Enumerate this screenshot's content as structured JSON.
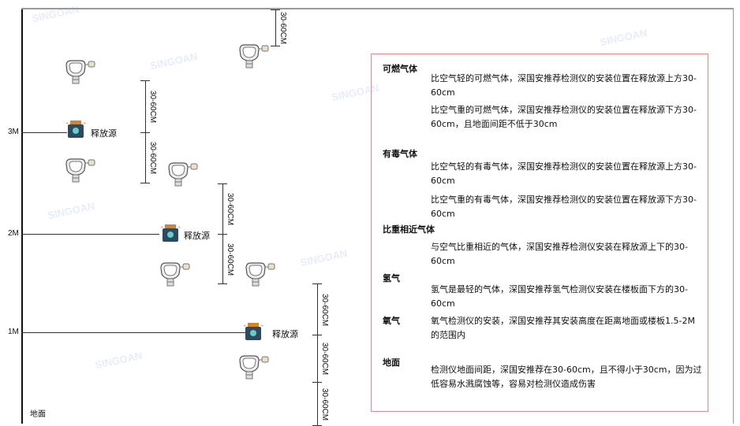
{
  "levels": [
    "3M",
    "2M",
    "1M"
  ],
  "ground_label": "地面",
  "source_label": "释放源",
  "dimension_label": "30-60CM",
  "watermark": "SINGOAN 深国安",
  "colors": {
    "panel_border": "#e88888",
    "source_body": "#2d4b5e",
    "source_cap": "#d9822b"
  },
  "panel": {
    "sections": [
      {
        "heading": "可燃气体",
        "paragraphs": [
          "比空气轻的可燃气体，深国安推荐检测仪的安装位置在释放源上方30-60cm",
          "比空气重的可燃气体，深国安推荐检测仪的安装位置在释放源下方30-60cm，且地面间距不低于30cm"
        ]
      },
      {
        "heading": "有毒气体",
        "paragraphs": [
          "比空气轻的有毒气体，深国安推荐检测仪的安装位置在释放源上方30-60cm",
          "比空气重的有毒气体，深国安推荐检测仪的安装位置在释放源下方30-60cm"
        ]
      },
      {
        "heading": "比重相近气体",
        "paragraphs": [
          "与空气比重相近的气体，深国安推荐检测仪安装在释放源上下的30-60cm"
        ]
      },
      {
        "heading": "氢气",
        "paragraphs": [
          "氢气是最轻的气体，深国安推荐氢气检测仪安装在楼板面下方的30-60cm"
        ]
      },
      {
        "heading": "氧气",
        "paragraphs": [
          "氧气检测仪的安装，深国安推荐其安装高度在距离地面或楼板1.5-2M的范围内"
        ]
      },
      {
        "heading": "地面",
        "paragraphs": [
          "检测仪地面间距，深国安推荐在30-60cm，且不得小于30cm，因为过低容易水溅腐蚀等，容易对检测仪造成伤害"
        ]
      }
    ]
  }
}
